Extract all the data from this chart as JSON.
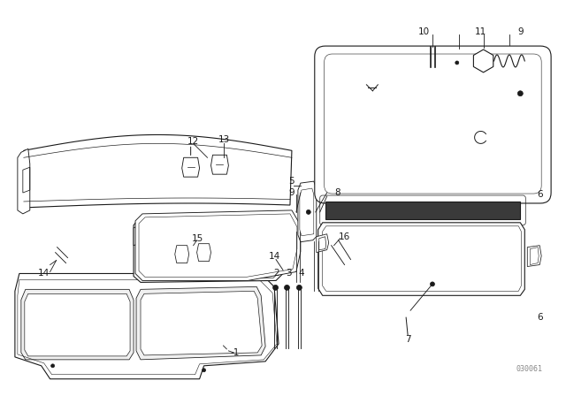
{
  "background_color": "#ffffff",
  "line_color": "#1a1a1a",
  "line_width": 0.8,
  "label_fontsize": 7.5,
  "watermark": "030061",
  "fig_width": 6.4,
  "fig_height": 4.48,
  "dpi": 100
}
